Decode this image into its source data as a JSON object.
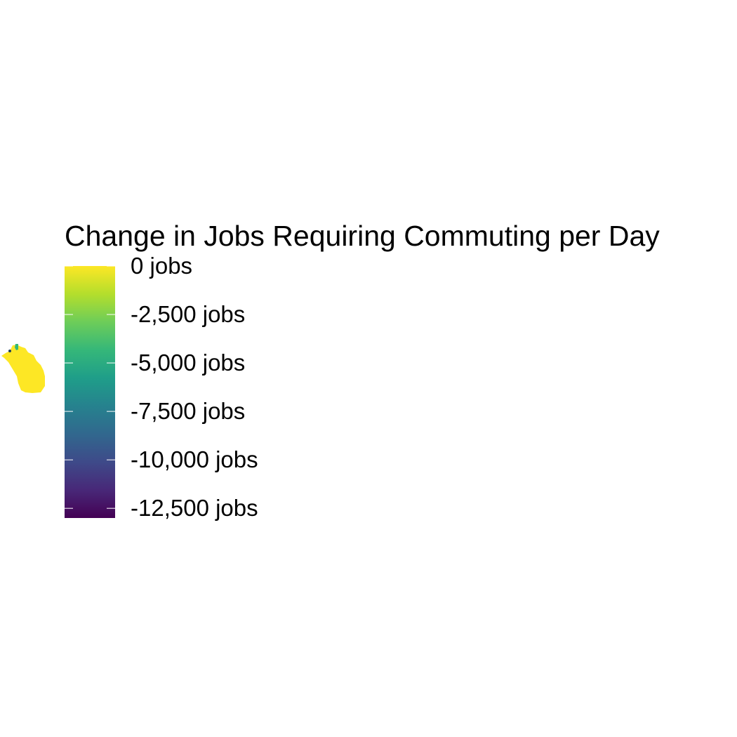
{
  "legend": {
    "title": "Change in Jobs Requiring Commuting per Day",
    "scale": "viridis",
    "min": -13000,
    "max": 0,
    "colors": [
      "#440154",
      "#482878",
      "#3E4A89",
      "#31688E",
      "#26828E",
      "#1F9E89",
      "#35B779",
      "#6DCD59",
      "#B4DE2C",
      "#FDE725"
    ],
    "ticks": [
      {
        "value": 0,
        "label": "0 jobs"
      },
      {
        "value": -2500,
        "label": "-2,500 jobs"
      },
      {
        "value": -5000,
        "label": "-5,000 jobs"
      },
      {
        "value": -7500,
        "label": "-7,500 jobs"
      },
      {
        "value": -10000,
        "label": "-10,000 jobs"
      },
      {
        "value": -12500,
        "label": "-12,500 jobs"
      }
    ]
  },
  "map": {
    "fill_main": "#FDE725",
    "fill_accent": "#35B779"
  }
}
